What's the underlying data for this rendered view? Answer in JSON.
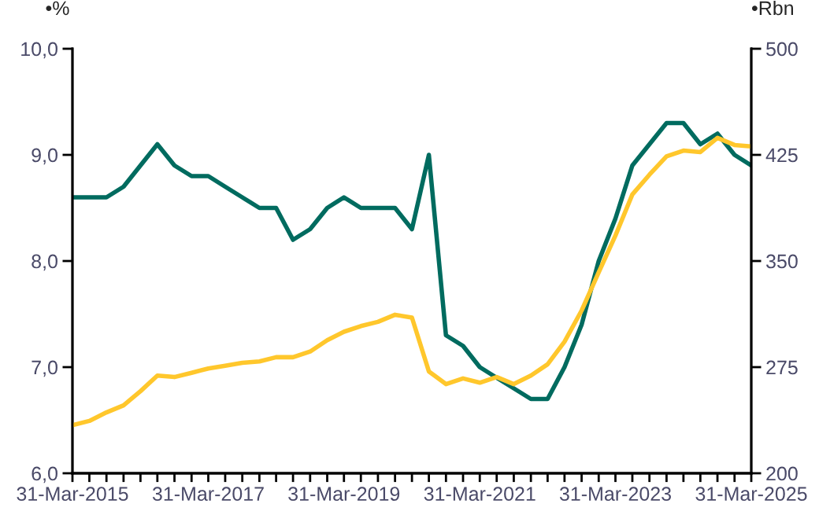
{
  "chart_data": {
    "type": "line",
    "ylabel": "•%",
    "y2label": "•Rbn",
    "x": [
      "2015-03-31",
      "2015-06-30",
      "2015-09-30",
      "2015-12-31",
      "2016-03-31",
      "2016-06-30",
      "2016-09-30",
      "2016-12-31",
      "2017-03-31",
      "2017-06-30",
      "2017-09-30",
      "2017-12-31",
      "2018-03-31",
      "2018-06-30",
      "2018-09-30",
      "2018-12-31",
      "2019-03-31",
      "2019-06-30",
      "2019-09-30",
      "2019-12-31",
      "2020-03-31",
      "2020-06-30",
      "2020-09-30",
      "2020-12-31",
      "2021-03-31",
      "2021-06-30",
      "2021-09-30",
      "2021-12-31",
      "2022-03-31",
      "2022-06-30",
      "2022-09-30",
      "2022-12-31",
      "2023-03-31",
      "2023-06-30",
      "2023-09-30",
      "2023-12-31",
      "2024-03-31",
      "2024-06-30",
      "2024-09-30",
      "2024-12-31",
      "2025-03-31"
    ],
    "series": [
      {
        "color": "#006b5f",
        "values": [
          8.6,
          8.6,
          8.6,
          8.7,
          8.9,
          9.1,
          8.9,
          8.8,
          8.8,
          8.7,
          8.6,
          8.5,
          8.5,
          8.2,
          8.3,
          8.5,
          8.6,
          8.5,
          8.5,
          8.5,
          8.3,
          9.0,
          7.3,
          7.2,
          7.0,
          6.9,
          6.8,
          6.7,
          6.7,
          7.0,
          7.4,
          8.0,
          8.4,
          8.9,
          9.1,
          9.3,
          9.3,
          9.1,
          9.2,
          9.0,
          8.9
        ]
      },
      {
        "color": "#ffc72c",
        "axis": "y2",
        "values": [
          234,
          237,
          243,
          248,
          258,
          269,
          268,
          271,
          274,
          276,
          278,
          279,
          282,
          282,
          286,
          294,
          300,
          304,
          307,
          312,
          310,
          272,
          263,
          267,
          264,
          268,
          263,
          269,
          277,
          293,
          315,
          342,
          368,
          397,
          411,
          424,
          428,
          427,
          437,
          432,
          431
        ]
      }
    ],
    "xlim": [
      "2015-03-31",
      "2025-03-31"
    ],
    "xticks": [
      {
        "value": "2015-03-31",
        "label": "31-Mar-2015"
      },
      {
        "value": "2015-06-30",
        "label": null
      },
      {
        "value": "2015-09-30",
        "label": null
      },
      {
        "value": "2015-12-31",
        "label": null
      },
      {
        "value": "2016-03-31",
        "label": null
      },
      {
        "value": "2016-06-30",
        "label": null
      },
      {
        "value": "2016-09-30",
        "label": null
      },
      {
        "value": "2016-12-31",
        "label": null
      },
      {
        "value": "2017-03-31",
        "label": "31-Mar-2017"
      },
      {
        "value": "2017-06-30",
        "label": null
      },
      {
        "value": "2017-09-30",
        "label": null
      },
      {
        "value": "2017-12-31",
        "label": null
      },
      {
        "value": "2018-03-31",
        "label": null
      },
      {
        "value": "2018-06-30",
        "label": null
      },
      {
        "value": "2018-09-30",
        "label": null
      },
      {
        "value": "2018-12-31",
        "label": null
      },
      {
        "value": "2019-03-31",
        "label": "31-Mar-2019"
      },
      {
        "value": "2019-06-30",
        "label": null
      },
      {
        "value": "2019-09-30",
        "label": null
      },
      {
        "value": "2019-12-31",
        "label": null
      },
      {
        "value": "2020-03-31",
        "label": null
      },
      {
        "value": "2020-06-30",
        "label": null
      },
      {
        "value": "2020-09-30",
        "label": null
      },
      {
        "value": "2020-12-31",
        "label": null
      },
      {
        "value": "2021-03-31",
        "label": "31-Mar-2021"
      },
      {
        "value": "2021-06-30",
        "label": null
      },
      {
        "value": "2021-09-30",
        "label": null
      },
      {
        "value": "2021-12-31",
        "label": null
      },
      {
        "value": "2022-03-31",
        "label": null
      },
      {
        "value": "2022-06-30",
        "label": null
      },
      {
        "value": "2022-09-30",
        "label": null
      },
      {
        "value": "2022-12-31",
        "label": null
      },
      {
        "value": "2023-03-31",
        "label": "31-Mar-2023"
      },
      {
        "value": "2023-06-30",
        "label": null
      },
      {
        "value": "2023-09-30",
        "label": null
      },
      {
        "value": "2023-12-31",
        "label": null
      },
      {
        "value": "2024-03-31",
        "label": null
      },
      {
        "value": "2024-06-30",
        "label": null
      },
      {
        "value": "2024-09-30",
        "label": null
      },
      {
        "value": "2024-12-31",
        "label": null
      },
      {
        "value": "2025-03-31",
        "label": "31-Mar-2025"
      }
    ],
    "ylim": [
      6.0,
      10.0
    ],
    "yticks": [
      {
        "value": 6.0,
        "label": "6,0"
      },
      {
        "value": 7.0,
        "label": "7,0"
      },
      {
        "value": 8.0,
        "label": "8,0"
      },
      {
        "value": 9.0,
        "label": "9,0"
      },
      {
        "value": 10.0,
        "label": "10,0"
      }
    ],
    "y2lim": [
      200,
      500
    ],
    "y2ticks": [
      200,
      275,
      350,
      425,
      500
    ],
    "grid": false,
    "marker": "none",
    "line_style": "solid"
  }
}
